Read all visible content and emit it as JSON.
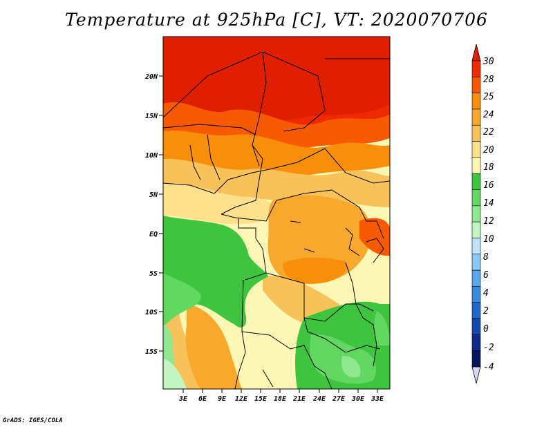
{
  "title": "Temperature at 925hPa [C], VT: 2020070706",
  "credit": "GrADS: IGES/COLA",
  "map": {
    "variable": "Temperature",
    "level": "925hPa",
    "units": "C",
    "valid_time": "2020070706",
    "lat_labels": [
      "20N",
      "15N",
      "10N",
      "5N",
      "EQ",
      "5S",
      "10S",
      "15S"
    ],
    "lon_labels": [
      "3E",
      "6E",
      "9E",
      "12E",
      "15E",
      "18E",
      "21E",
      "24E",
      "27E",
      "30E",
      "33E"
    ]
  },
  "colorbar": {
    "labels": [
      "30",
      "28",
      "25",
      "24",
      "22",
      "20",
      "18",
      "16",
      "14",
      "12",
      "10",
      "8",
      "6",
      "4",
      "2",
      "0",
      "-2",
      "-4"
    ],
    "colors": [
      "#f02a00",
      "#f75a00",
      "#f88f0b",
      "#f8a82c",
      "#f8c25a",
      "#fce08b",
      "#fdf7b5",
      "#3ec43e",
      "#62d862",
      "#8fe88f",
      "#c3f5c3",
      "#bde4fa",
      "#8cc8f4",
      "#5aa8ea",
      "#3a8ade",
      "#2068cc",
      "#1446b0",
      "#0c2a88",
      "#081660"
    ],
    "max_arrow_color": "#e11e0a",
    "min_arrow_color": "#d6d8f7"
  },
  "chart_data": {
    "type": "heatmap",
    "title": "Temperature at 925hPa [C], VT: 2020070706",
    "colorbar_levels": [
      -4,
      -2,
      0,
      2,
      4,
      6,
      8,
      10,
      12,
      14,
      16,
      18,
      20,
      22,
      24,
      25,
      28,
      30
    ],
    "lat_ticks": [
      20,
      15,
      10,
      5,
      0,
      -5,
      -10,
      -15
    ],
    "lon_ticks": [
      3,
      6,
      9,
      12,
      15,
      18,
      21,
      24,
      27,
      30,
      33
    ],
    "lat_range": [
      -19,
      24
    ],
    "lon_range": [
      0.5,
      35
    ]
  }
}
